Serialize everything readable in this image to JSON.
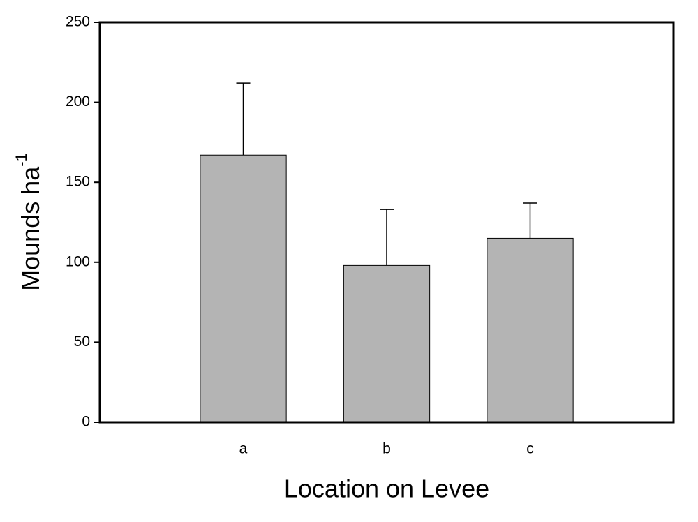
{
  "chart_data": {
    "type": "bar",
    "xlabel": "Location on Levee",
    "ylabel": "Mounds ha",
    "ylabel_superscript": "-1",
    "categories": [
      "a",
      "b",
      "c"
    ],
    "values": [
      167,
      98,
      115
    ],
    "errors": [
      45,
      35,
      22
    ],
    "color": "#b4b4b4",
    "ylim": [
      0,
      250
    ],
    "yticks": [
      0,
      50,
      100,
      150,
      200,
      250
    ],
    "grid": false
  }
}
